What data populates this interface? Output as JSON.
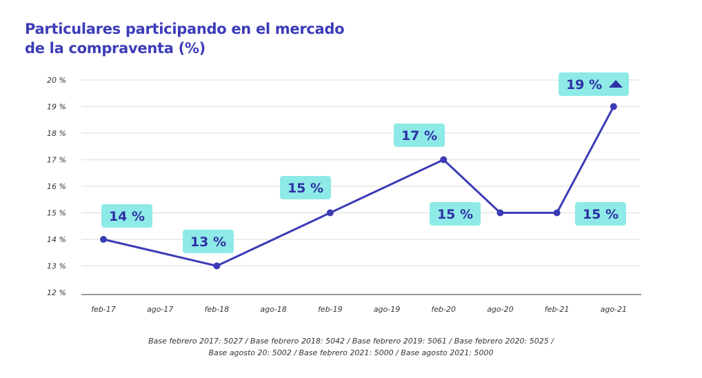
{
  "chart_data": {
    "type": "line",
    "title": [
      "Particulares participando en el mercado",
      "de la compraventa (%)"
    ],
    "categories": [
      "feb-17",
      "ago-17",
      "feb-18",
      "ago-18",
      "feb-19",
      "ago-19",
      "feb-20",
      "ago-20",
      "feb-21",
      "ago-21"
    ],
    "values": [
      14,
      null,
      13,
      null,
      15,
      null,
      17,
      15,
      15,
      19
    ],
    "data_labels": [
      "14 %",
      null,
      "13 %",
      null,
      "15 %",
      null,
      "17 %",
      "15 %",
      "15 %",
      "19 %"
    ],
    "trend_marker": {
      "category": "ago-21",
      "icon": "triangle-up-icon"
    },
    "yticks": [
      "12 %",
      "13 %",
      "14 %",
      "15 %",
      "16 %",
      "17 %",
      "18 %",
      "19 %",
      "20 %"
    ],
    "ylim": [
      12,
      20
    ],
    "grid": true,
    "colors": {
      "line": "#3b3bb5",
      "label_bg": "#8eeae6",
      "label_text": "#2f2fa6",
      "title": "#3c3cb8"
    }
  },
  "footnote": [
    "Base febrero 2017: 5027 / Base febrero 2018: 5042 / Base febrero 2019: 5061 / Base febrero 2020: 5025 /",
    "Base agosto 20: 5002 / Base febrero 2021: 5000 / Base agosto 2021: 5000"
  ]
}
